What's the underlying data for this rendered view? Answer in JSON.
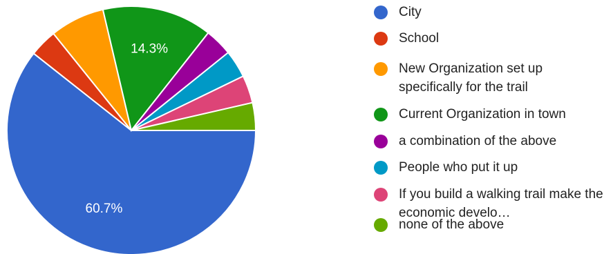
{
  "chart_data": {
    "type": "pie",
    "slices": [
      {
        "label": "City",
        "value": 60.7,
        "color": "#3366cc",
        "value_label": "60.7%"
      },
      {
        "label": "School",
        "value": 3.6,
        "color": "#dc3912",
        "value_label": ""
      },
      {
        "label": "New Organization set up specifically for the trail",
        "value": 7.1,
        "color": "#ff9900",
        "value_label": ""
      },
      {
        "label": "Current Organization in town",
        "value": 14.3,
        "color": "#109618",
        "value_label": "14.3%"
      },
      {
        "label": "a combination of the above",
        "value": 3.6,
        "color": "#990099",
        "value_label": ""
      },
      {
        "label": "People who put it up",
        "value": 3.6,
        "color": "#0099c6",
        "value_label": ""
      },
      {
        "label": "If you build a walking trail make the economic develo…",
        "value": 3.6,
        "color": "#dd4477",
        "value_label": ""
      },
      {
        "label": "none of the above",
        "value": 3.6,
        "color": "#66aa00",
        "value_label": ""
      }
    ],
    "legend_position": "right"
  }
}
